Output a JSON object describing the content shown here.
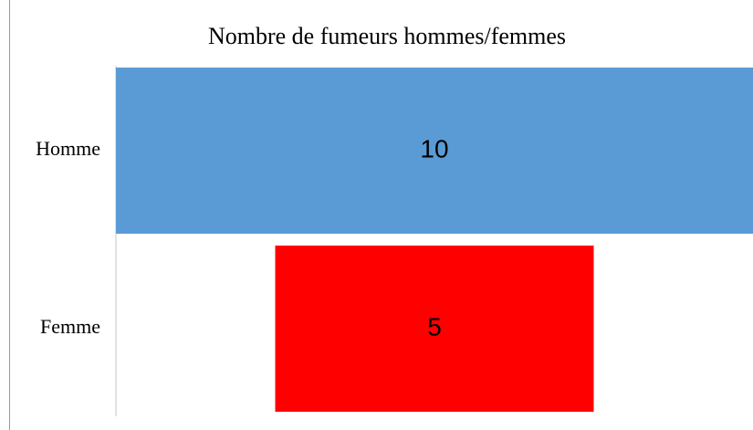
{
  "chart_data": {
    "type": "funnel",
    "title": "Nombre de fumeurs hommes/femmes",
    "categories": [
      "Homme",
      "Femme"
    ],
    "values": [
      10,
      5
    ],
    "colors": [
      "#5b9bd5",
      "#ff0000"
    ]
  }
}
